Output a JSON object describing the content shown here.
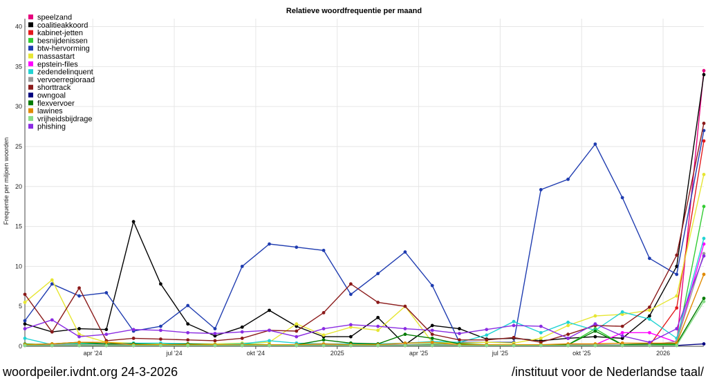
{
  "footer": {
    "left": "woordpeiler.ivdnt.org 24-3-2026",
    "right": "/instituut voor de Nederlandse taal/"
  },
  "chart_data": {
    "type": "line",
    "title": "Relatieve woordfrequentie per maand",
    "xlabel": "",
    "ylabel": "Frequentie per miljoen woorden",
    "ylim": [
      0,
      41
    ],
    "yticks": [
      0,
      5,
      10,
      15,
      20,
      25,
      30,
      35,
      40
    ],
    "x": [
      "2024-01",
      "2024-02",
      "2024-03",
      "2024-04",
      "2024-05",
      "2024-06",
      "2024-07",
      "2024-08",
      "2024-09",
      "2024-10",
      "2024-11",
      "2024-12",
      "2025-01",
      "2025-02",
      "2025-03",
      "2025-04",
      "2025-05",
      "2025-06",
      "2025-07",
      "2025-08",
      "2025-09",
      "2025-10",
      "2025-11",
      "2025-12",
      "2026-01",
      "2026-02"
    ],
    "xticks": [
      {
        "index": 2.5,
        "label": "apr '24"
      },
      {
        "index": 5.5,
        "label": "jul '24"
      },
      {
        "index": 8.5,
        "label": "okt '24"
      },
      {
        "index": 11.5,
        "label": "2025"
      },
      {
        "index": 14.5,
        "label": "apr '25"
      },
      {
        "index": 17.5,
        "label": "jul '25"
      },
      {
        "index": 20.5,
        "label": "okt '25"
      },
      {
        "index": 23.5,
        "label": "2026"
      }
    ],
    "grid": true,
    "legend_position": "top-left",
    "series": [
      {
        "name": "speelzand",
        "color": "#e6007e",
        "values": [
          0.3,
          0.1,
          0.1,
          0.1,
          0.1,
          0.1,
          0.1,
          0.1,
          0.1,
          0.1,
          0.1,
          0.1,
          0.1,
          0.1,
          0.1,
          0.1,
          0.1,
          0.1,
          0.1,
          0.1,
          0.1,
          0.1,
          0.1,
          0.1,
          0.3,
          34.5
        ]
      },
      {
        "name": "coalitieakkoord",
        "color": "#000000",
        "values": [
          2.8,
          1.8,
          2.2,
          2.1,
          15.6,
          7.8,
          2.8,
          1.3,
          2.4,
          4.5,
          2.5,
          1.2,
          1.2,
          3.6,
          0.2,
          2.6,
          2.2,
          0.9,
          1.0,
          0.7,
          1.0,
          1.2,
          1.0,
          3.8,
          10.0,
          34.0
        ]
      },
      {
        "name": "kabinet-jetten",
        "color": "#e31a1c",
        "values": [
          0.1,
          0.1,
          0.1,
          0.1,
          0.1,
          0.1,
          0.1,
          0.1,
          0.1,
          0.1,
          0.1,
          0.1,
          0.1,
          0.1,
          0.1,
          0.1,
          0.1,
          0.1,
          0.1,
          0.1,
          0.1,
          0.1,
          0.1,
          0.1,
          4.8,
          25.7
        ]
      },
      {
        "name": "besnijdenissen",
        "color": "#33cc33",
        "values": [
          0.3,
          0.2,
          0.3,
          0.2,
          0.2,
          0.2,
          0.1,
          0.2,
          0.3,
          0.2,
          0.2,
          0.3,
          0.2,
          0.2,
          0.2,
          0.3,
          0.2,
          0.2,
          0.2,
          0.2,
          0.2,
          2.2,
          0.2,
          0.2,
          0.2,
          17.5
        ]
      },
      {
        "name": "btw-hervorming",
        "color": "#1f3cb0",
        "values": [
          3.2,
          7.8,
          6.3,
          6.7,
          1.9,
          2.5,
          5.1,
          2.2,
          10.0,
          12.8,
          12.4,
          12.0,
          6.5,
          9.1,
          11.8,
          7.6,
          0.5,
          0.5,
          0.5,
          19.6,
          20.9,
          25.3,
          18.6,
          11.0,
          9.0,
          27.0
        ]
      },
      {
        "name": "massastart",
        "color": "#e6e633",
        "values": [
          5.5,
          8.3,
          1.5,
          0.5,
          0.4,
          0.3,
          0.3,
          0.3,
          0.4,
          0.5,
          2.8,
          1.4,
          2.4,
          2.0,
          5.0,
          0.5,
          0.4,
          0.5,
          0.4,
          1.0,
          2.6,
          3.8,
          4.0,
          4.5,
          6.3,
          21.5
        ]
      },
      {
        "name": "epstein-files",
        "color": "#ff00ff",
        "values": [
          0.2,
          0.2,
          0.2,
          0.2,
          0.2,
          0.2,
          0.2,
          0.2,
          0.2,
          0.2,
          0.2,
          0.2,
          0.2,
          0.2,
          0.2,
          0.2,
          0.2,
          0.2,
          0.2,
          0.2,
          0.2,
          0.2,
          1.7,
          1.7,
          0.5,
          12.8
        ]
      },
      {
        "name": "zedendelinquent",
        "color": "#22d3d3",
        "values": [
          1.0,
          0.2,
          0.4,
          0.3,
          0.4,
          0.4,
          0.3,
          0.2,
          0.3,
          0.7,
          0.4,
          0.3,
          0.3,
          0.3,
          0.4,
          0.6,
          0.5,
          1.4,
          3.1,
          1.7,
          3.0,
          2.0,
          4.3,
          3.4,
          1.0,
          13.5
        ]
      },
      {
        "name": "vervoerregioraad",
        "color": "#999999",
        "values": [
          0.2,
          0.2,
          0.2,
          0.2,
          0.2,
          0.2,
          0.2,
          0.2,
          0.2,
          0.2,
          0.2,
          0.2,
          0.2,
          0.2,
          0.2,
          0.2,
          0.2,
          0.2,
          0.2,
          0.2,
          0.2,
          0.2,
          0.2,
          0.2,
          0.6,
          11.6
        ]
      },
      {
        "name": "shorttrack",
        "color": "#8b1a1a",
        "values": [
          6.5,
          1.8,
          7.3,
          0.7,
          1.0,
          0.9,
          0.8,
          0.7,
          1.0,
          2.0,
          1.9,
          4.2,
          7.8,
          5.5,
          5.0,
          1.5,
          0.8,
          0.8,
          1.1,
          0.5,
          1.5,
          2.6,
          2.5,
          4.9,
          11.4,
          27.9
        ]
      },
      {
        "name": "owngoal",
        "color": "#000080",
        "values": [
          0.1,
          0.1,
          0.1,
          0.1,
          0.1,
          0.1,
          0.1,
          0.1,
          0.1,
          0.1,
          0.1,
          0.1,
          0.1,
          0.1,
          0.1,
          0.1,
          0.1,
          0.1,
          0.1,
          0.1,
          0.1,
          0.1,
          0.1,
          0.1,
          0.1,
          0.3
        ]
      },
      {
        "name": "flexvervoer",
        "color": "#007a00",
        "values": [
          0.2,
          0.3,
          0.5,
          0.3,
          0.3,
          0.2,
          0.3,
          0.2,
          0.2,
          0.2,
          0.2,
          0.8,
          0.4,
          0.3,
          1.5,
          1.0,
          0.3,
          0.2,
          0.2,
          0.2,
          0.2,
          1.9,
          0.2,
          0.3,
          0.3,
          6.0
        ]
      },
      {
        "name": "lawines",
        "color": "#e08a00",
        "values": [
          0.2,
          0.3,
          0.5,
          0.5,
          0.2,
          0.2,
          0.2,
          0.2,
          0.2,
          0.2,
          0.2,
          0.3,
          0.2,
          0.2,
          0.4,
          0.5,
          0.2,
          0.2,
          0.2,
          0.2,
          0.3,
          0.3,
          0.4,
          0.4,
          0.4,
          9.0
        ]
      },
      {
        "name": "vrijheidsbijdrage",
        "color": "#88dd88",
        "values": [
          0.1,
          0.1,
          0.1,
          0.1,
          0.1,
          0.1,
          0.1,
          0.1,
          0.1,
          0.1,
          0.1,
          0.1,
          0.1,
          0.1,
          0.1,
          0.1,
          0.1,
          0.1,
          0.1,
          0.1,
          0.1,
          0.1,
          0.1,
          0.1,
          0.1,
          5.6
        ]
      },
      {
        "name": "phishing",
        "color": "#8a2be2",
        "values": [
          2.2,
          3.3,
          1.2,
          1.5,
          2.1,
          2.0,
          1.7,
          1.6,
          1.8,
          2.0,
          1.2,
          2.2,
          2.7,
          2.5,
          2.2,
          2.0,
          1.6,
          2.1,
          2.6,
          2.5,
          1.0,
          2.8,
          1.3,
          0.5,
          2.2,
          11.3
        ]
      }
    ]
  }
}
